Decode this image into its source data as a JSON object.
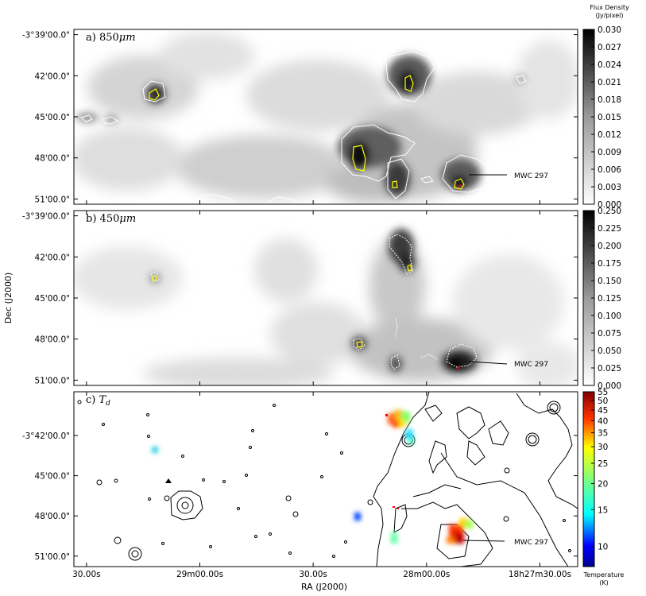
{
  "chart_data": {
    "type": "heatmap",
    "xlabel": "RA (J2000)",
    "ylabel": "Dec (J2000)",
    "x_ticks": [
      "30.00s",
      "29m00.00s",
      "30.00s",
      "28m00.00s",
      "18h27m30.00s"
    ],
    "source_label": "MWC 297",
    "panels": [
      {
        "id": "a",
        "label": "a) 850μm",
        "prefix": "a)",
        "name": "850",
        "unit": "μm",
        "y_ticks": [
          "-3°39'00.0\"",
          "42'00.0\"",
          "45'00.0\"",
          "48'00.0\"",
          "51'00.0\""
        ],
        "colorbar": {
          "title_line1": "Flux Density",
          "title_line2": "(Jy/pixel)",
          "ticks": [
            "0.030",
            "0.027",
            "0.024",
            "0.021",
            "0.018",
            "0.015",
            "0.012",
            "0.009",
            "0.006",
            "0.003",
            "0.000"
          ],
          "range": [
            0.0,
            0.03
          ],
          "colormap": "greyscale"
        }
      },
      {
        "id": "b",
        "label": "b) 450μm",
        "prefix": "b)",
        "name": "450",
        "unit": "μm",
        "y_ticks": [
          "-3°39'00.0\"",
          "42'00.0\"",
          "45'00.0\"",
          "48'00.0\"",
          "51'00.0\""
        ],
        "colorbar": {
          "ticks": [
            "0.250",
            "0.225",
            "0.200",
            "0.175",
            "0.150",
            "0.125",
            "0.100",
            "0.075",
            "0.050",
            "0.025",
            "0.000"
          ],
          "range": [
            0.0,
            0.25
          ],
          "colormap": "greyscale"
        }
      },
      {
        "id": "c",
        "label": "c) Td",
        "prefix": "c)",
        "name": "T",
        "subscript": "d",
        "y_ticks": [
          "-3°42'00.0\"",
          "45'00.0\"",
          "48'00.0\"",
          "51'00.0\""
        ],
        "colorbar": {
          "title_line1": "Temperature",
          "title_line2": "(K)",
          "ticks": [
            "55",
            "50",
            "45",
            "40",
            "35",
            "30",
            "25",
            "20",
            "15",
            "10"
          ],
          "range": [
            8,
            55
          ],
          "colormap": "jet"
        },
        "temperature_clumps": [
          {
            "region": "north-east clump",
            "T_K": [
              22,
              35
            ]
          },
          {
            "region": "east small clump",
            "T_K": [
              14,
              16
            ]
          },
          {
            "region": "west clump",
            "T_K": [
              15,
              18
            ]
          },
          {
            "region": "central clump",
            "T_K": [
              9,
              11
            ]
          },
          {
            "region": "south clump",
            "T_K": [
              15,
              18
            ]
          },
          {
            "region": "MWC 297 region",
            "T_K": [
              20,
              55
            ]
          }
        ]
      }
    ]
  },
  "colors": {
    "contour_yellow": "#ffff00",
    "contour_white": "#ffffff",
    "contour_black": "#000000",
    "marker_red": "#ff0000"
  }
}
